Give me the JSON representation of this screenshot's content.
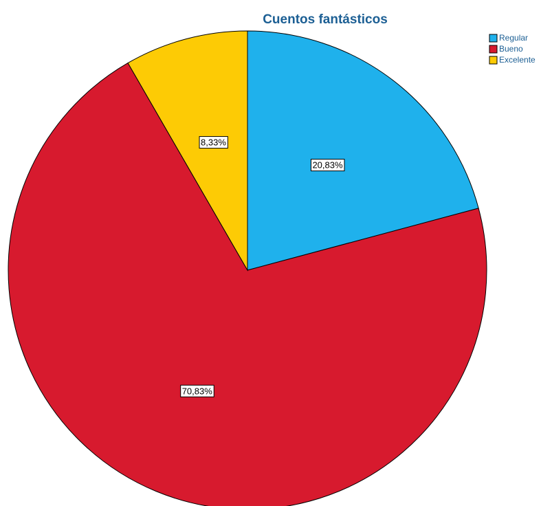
{
  "chart_data": {
    "type": "pie",
    "title": "Cuentos fantásticos",
    "categories": [
      "Regular",
      "Bueno",
      "Excelente"
    ],
    "values": [
      20.83,
      70.83,
      8.33
    ],
    "value_labels": [
      "20,83%",
      "70,83%",
      "8,33%"
    ],
    "colors": [
      "#1fb1ec",
      "#d71a2e",
      "#fdcb05"
    ],
    "legend": "top-right"
  }
}
